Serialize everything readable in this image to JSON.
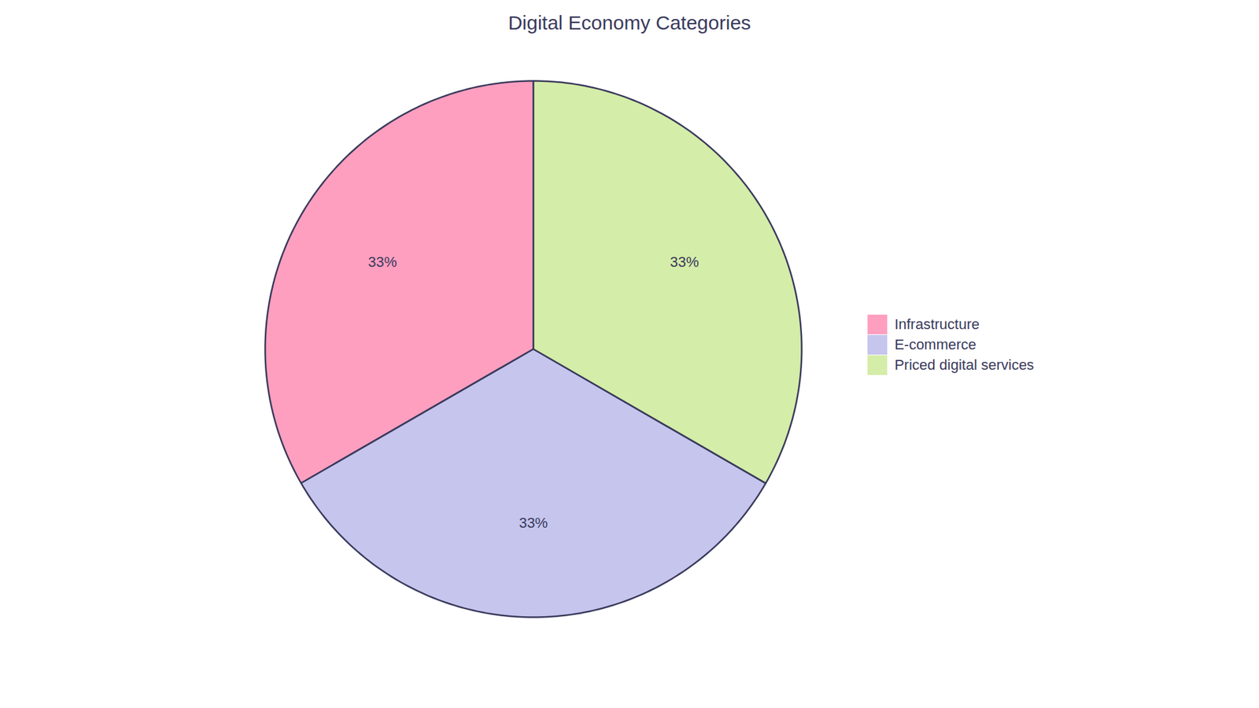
{
  "chart_data": {
    "type": "pie",
    "title": "Digital Economy Categories",
    "categories": [
      "Infrastructure",
      "E-commerce",
      "Priced digital services"
    ],
    "values": [
      33.33,
      33.33,
      33.34
    ],
    "value_labels": [
      "33%",
      "33%",
      "33%"
    ],
    "colors": [
      "#FF9FBF",
      "#C5C5EE",
      "#D4EDA8"
    ],
    "data_labels": true,
    "legend": "right"
  }
}
